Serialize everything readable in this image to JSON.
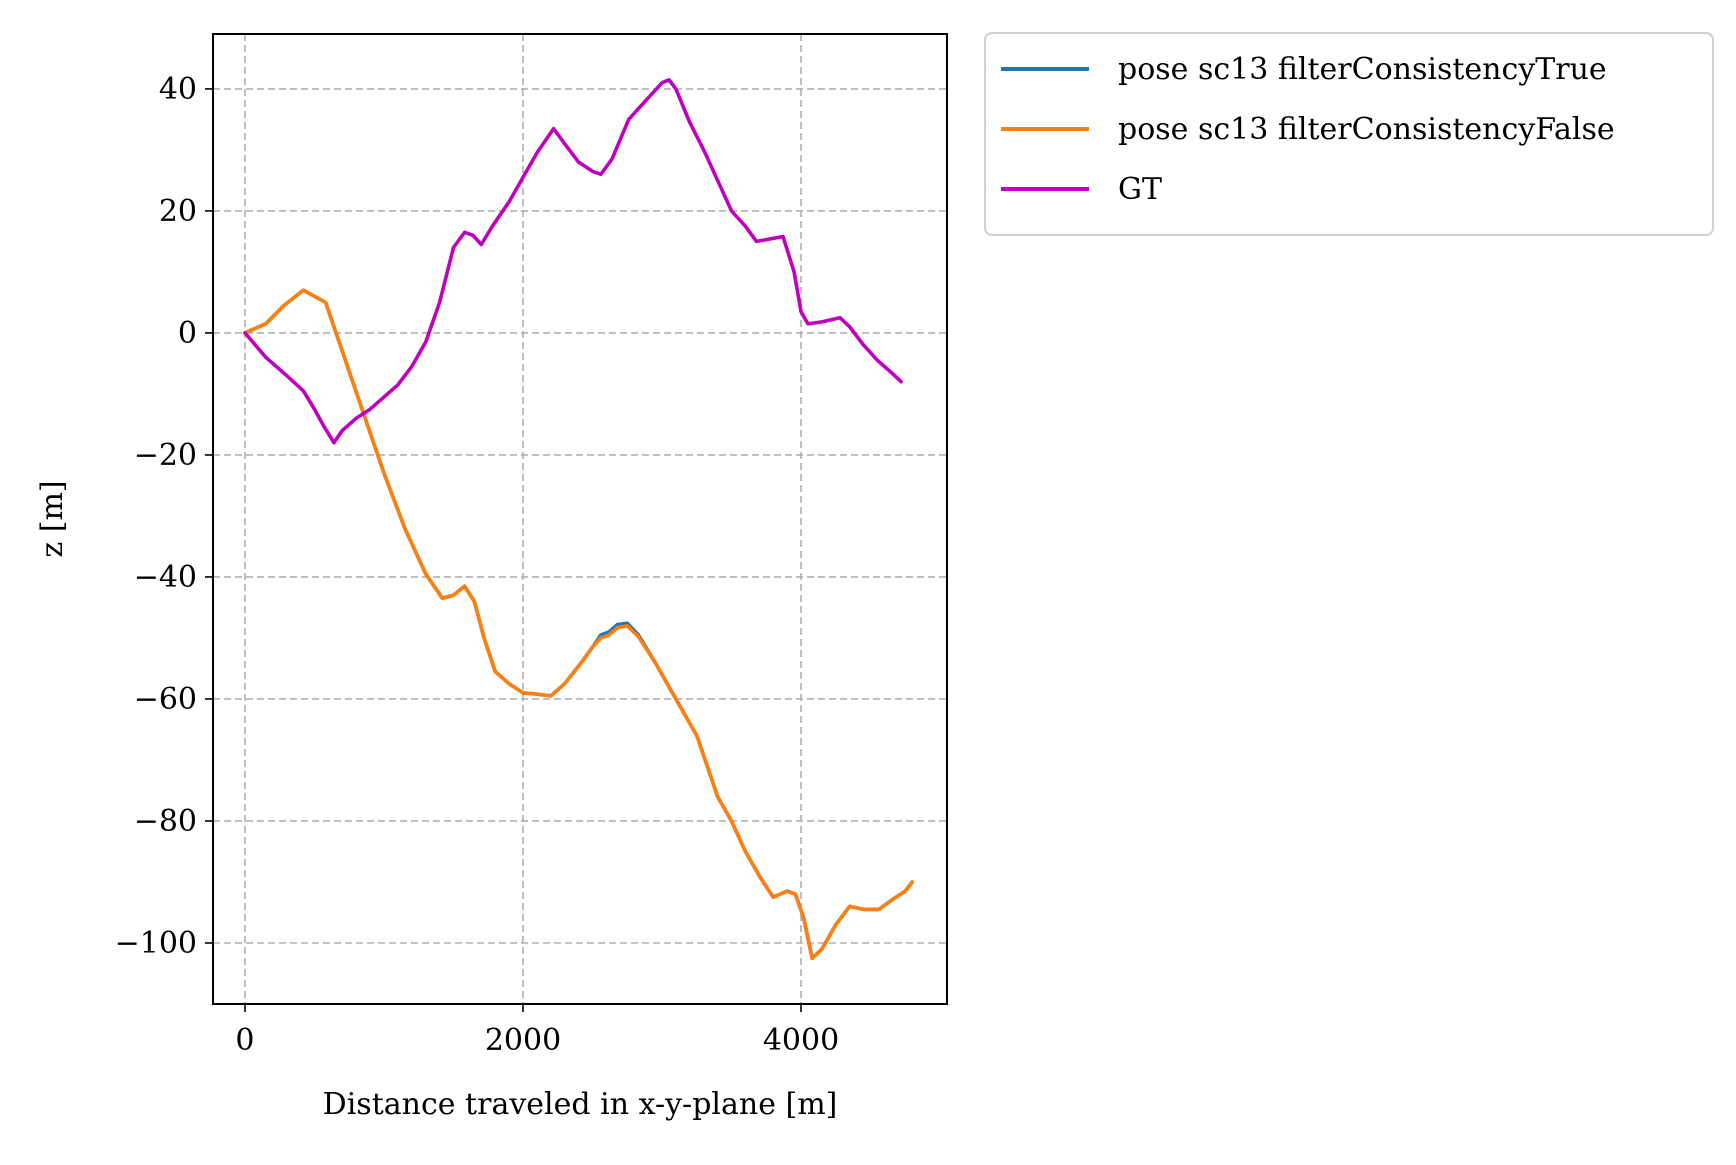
{
  "chart_data": {
    "type": "line",
    "xlabel": "Distance traveled in x-y-plane [m]",
    "ylabel": "z [m]",
    "xlim": [
      -230,
      5050
    ],
    "ylim": [
      -110,
      49
    ],
    "xticks": [
      {
        "value": 0,
        "label": "0"
      },
      {
        "value": 2000,
        "label": "2000"
      },
      {
        "value": 4000,
        "label": "4000"
      }
    ],
    "yticks": [
      {
        "value": 40,
        "label": "40"
      },
      {
        "value": 20,
        "label": "20"
      },
      {
        "value": 0,
        "label": "0"
      },
      {
        "value": -20,
        "label": "−20"
      },
      {
        "value": -40,
        "label": "−40"
      },
      {
        "value": -60,
        "label": "−60"
      },
      {
        "value": -80,
        "label": "−80"
      },
      {
        "value": -100,
        "label": "−100"
      }
    ],
    "grid": true,
    "legend_position": "outside-top-right",
    "series": [
      {
        "name": "pose sc13 filterConsistencyTrue",
        "color": "#1f77b4",
        "points": [
          [
            0,
            0
          ],
          [
            150,
            1.5
          ],
          [
            280,
            4.5
          ],
          [
            420,
            7
          ],
          [
            500,
            6
          ],
          [
            580,
            5
          ],
          [
            700,
            -3
          ],
          [
            850,
            -13
          ],
          [
            1000,
            -23
          ],
          [
            1150,
            -32
          ],
          [
            1300,
            -39.5
          ],
          [
            1420,
            -43.5
          ],
          [
            1500,
            -43
          ],
          [
            1580,
            -41.5
          ],
          [
            1650,
            -44
          ],
          [
            1720,
            -50
          ],
          [
            1800,
            -55.5
          ],
          [
            1900,
            -57.5
          ],
          [
            2000,
            -59
          ],
          [
            2100,
            -59.2
          ],
          [
            2200,
            -59.5
          ],
          [
            2300,
            -57.5
          ],
          [
            2420,
            -54
          ],
          [
            2500,
            -51.5
          ],
          [
            2560,
            -49.5
          ],
          [
            2620,
            -49
          ],
          [
            2680,
            -47.8
          ],
          [
            2750,
            -47.6
          ],
          [
            2830,
            -49.5
          ],
          [
            2950,
            -54
          ],
          [
            3100,
            -60
          ],
          [
            3250,
            -66
          ],
          [
            3400,
            -76
          ],
          [
            3500,
            -80
          ],
          [
            3600,
            -85
          ],
          [
            3700,
            -89
          ],
          [
            3800,
            -92.5
          ],
          [
            3900,
            -91.5
          ],
          [
            3960,
            -92
          ],
          [
            4020,
            -96
          ],
          [
            4080,
            -102.5
          ],
          [
            4150,
            -101
          ],
          [
            4250,
            -97
          ],
          [
            4350,
            -94
          ],
          [
            4450,
            -94.5
          ],
          [
            4560,
            -94.5
          ],
          [
            4650,
            -93
          ],
          [
            4750,
            -91.5
          ],
          [
            4800,
            -90
          ]
        ]
      },
      {
        "name": "pose sc13 filterConsistencyFalse",
        "color": "#ff7f0e",
        "points": [
          [
            0,
            0
          ],
          [
            150,
            1.5
          ],
          [
            280,
            4.5
          ],
          [
            420,
            7
          ],
          [
            500,
            6
          ],
          [
            580,
            5
          ],
          [
            700,
            -3
          ],
          [
            850,
            -13
          ],
          [
            1000,
            -23
          ],
          [
            1150,
            -32
          ],
          [
            1300,
            -39.5
          ],
          [
            1420,
            -43.5
          ],
          [
            1500,
            -43
          ],
          [
            1580,
            -41.5
          ],
          [
            1650,
            -44
          ],
          [
            1720,
            -50
          ],
          [
            1800,
            -55.5
          ],
          [
            1900,
            -57.5
          ],
          [
            2000,
            -59
          ],
          [
            2100,
            -59.2
          ],
          [
            2200,
            -59.5
          ],
          [
            2300,
            -57.5
          ],
          [
            2420,
            -54
          ],
          [
            2500,
            -51.5
          ],
          [
            2560,
            -50
          ],
          [
            2620,
            -49.5
          ],
          [
            2680,
            -48.3
          ],
          [
            2750,
            -48
          ],
          [
            2830,
            -49.8
          ],
          [
            2950,
            -54
          ],
          [
            3100,
            -60
          ],
          [
            3250,
            -66
          ],
          [
            3400,
            -76
          ],
          [
            3500,
            -80
          ],
          [
            3600,
            -85
          ],
          [
            3700,
            -89
          ],
          [
            3800,
            -92.5
          ],
          [
            3900,
            -91.5
          ],
          [
            3960,
            -92
          ],
          [
            4020,
            -96
          ],
          [
            4080,
            -102.5
          ],
          [
            4150,
            -101
          ],
          [
            4250,
            -97
          ],
          [
            4350,
            -94
          ],
          [
            4450,
            -94.5
          ],
          [
            4560,
            -94.5
          ],
          [
            4650,
            -93
          ],
          [
            4750,
            -91.5
          ],
          [
            4800,
            -90
          ]
        ]
      },
      {
        "name": "GT",
        "color": "#bf00bf",
        "points": [
          [
            0,
            0
          ],
          [
            150,
            -4
          ],
          [
            300,
            -7
          ],
          [
            420,
            -9.5
          ],
          [
            500,
            -12.5
          ],
          [
            560,
            -15
          ],
          [
            640,
            -18
          ],
          [
            700,
            -16
          ],
          [
            800,
            -14
          ],
          [
            900,
            -12.5
          ],
          [
            1000,
            -10.5
          ],
          [
            1100,
            -8.5
          ],
          [
            1200,
            -5.5
          ],
          [
            1300,
            -1.5
          ],
          [
            1400,
            5
          ],
          [
            1500,
            14
          ],
          [
            1580,
            16.5
          ],
          [
            1640,
            16
          ],
          [
            1700,
            14.5
          ],
          [
            1780,
            17.5
          ],
          [
            1900,
            21.5
          ],
          [
            2000,
            25.5
          ],
          [
            2100,
            29.5
          ],
          [
            2220,
            33.5
          ],
          [
            2300,
            31
          ],
          [
            2400,
            28
          ],
          [
            2500,
            26.5
          ],
          [
            2560,
            26
          ],
          [
            2640,
            28.5
          ],
          [
            2760,
            35
          ],
          [
            2900,
            38.5
          ],
          [
            3000,
            41
          ],
          [
            3050,
            41.5
          ],
          [
            3100,
            40
          ],
          [
            3200,
            34.5
          ],
          [
            3300,
            30
          ],
          [
            3400,
            25
          ],
          [
            3500,
            20
          ],
          [
            3600,
            17.5
          ],
          [
            3680,
            15
          ],
          [
            3800,
            15.5
          ],
          [
            3870,
            15.8
          ],
          [
            3950,
            10
          ],
          [
            4000,
            3.5
          ],
          [
            4050,
            1.5
          ],
          [
            4150,
            1.8
          ],
          [
            4280,
            2.5
          ],
          [
            4350,
            1
          ],
          [
            4450,
            -2
          ],
          [
            4550,
            -4.5
          ],
          [
            4650,
            -6.5
          ],
          [
            4720,
            -8
          ]
        ]
      }
    ]
  }
}
